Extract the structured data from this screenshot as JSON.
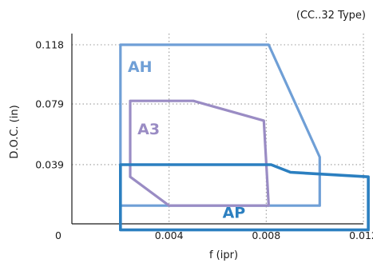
{
  "chart_data": {
    "type": "area",
    "note": "(CC..32 Type)",
    "xlabel": "f (ipr)",
    "ylabel": "D.O.C. (in)",
    "xlim": [
      0,
      0.012
    ],
    "ylim": [
      0,
      0.118
    ],
    "origin_label": "0",
    "x_ticks": [
      {
        "value": 0.004,
        "label": "0.004"
      },
      {
        "value": 0.008,
        "label": "0.008"
      },
      {
        "value": 0.012,
        "label": "0.012"
      }
    ],
    "y_ticks": [
      {
        "value": 0.039,
        "label": "0.039"
      },
      {
        "value": 0.079,
        "label": "0.079"
      },
      {
        "value": 0.118,
        "label": "0.118"
      }
    ],
    "grid": true,
    "regions": [
      {
        "name": "AH",
        "color": "#6f9fd6",
        "label_pos": [
          0.0023,
          0.1
        ],
        "points": [
          [
            0.002,
            0.118
          ],
          [
            0.0081,
            0.118
          ],
          [
            0.0102,
            0.044
          ],
          [
            0.0102,
            0.012
          ],
          [
            0.002,
            0.012
          ]
        ]
      },
      {
        "name": "A3",
        "color": "#9a8cc4",
        "label_pos": [
          0.0027,
          0.059
        ],
        "points": [
          [
            0.0024,
            0.081
          ],
          [
            0.005,
            0.081
          ],
          [
            0.0079,
            0.068
          ],
          [
            0.0081,
            0.012
          ],
          [
            0.004,
            0.012
          ],
          [
            0.0024,
            0.031
          ]
        ]
      },
      {
        "name": "AP",
        "color": "#2b7fc0",
        "label_pos": [
          0.0062,
          0.004
        ],
        "points": [
          [
            0.002,
            0.039
          ],
          [
            0.0082,
            0.039
          ],
          [
            0.009,
            0.034
          ],
          [
            0.0122,
            0.031
          ],
          [
            0.0122,
            -0.004
          ],
          [
            0.002,
            -0.004
          ]
        ]
      }
    ]
  }
}
